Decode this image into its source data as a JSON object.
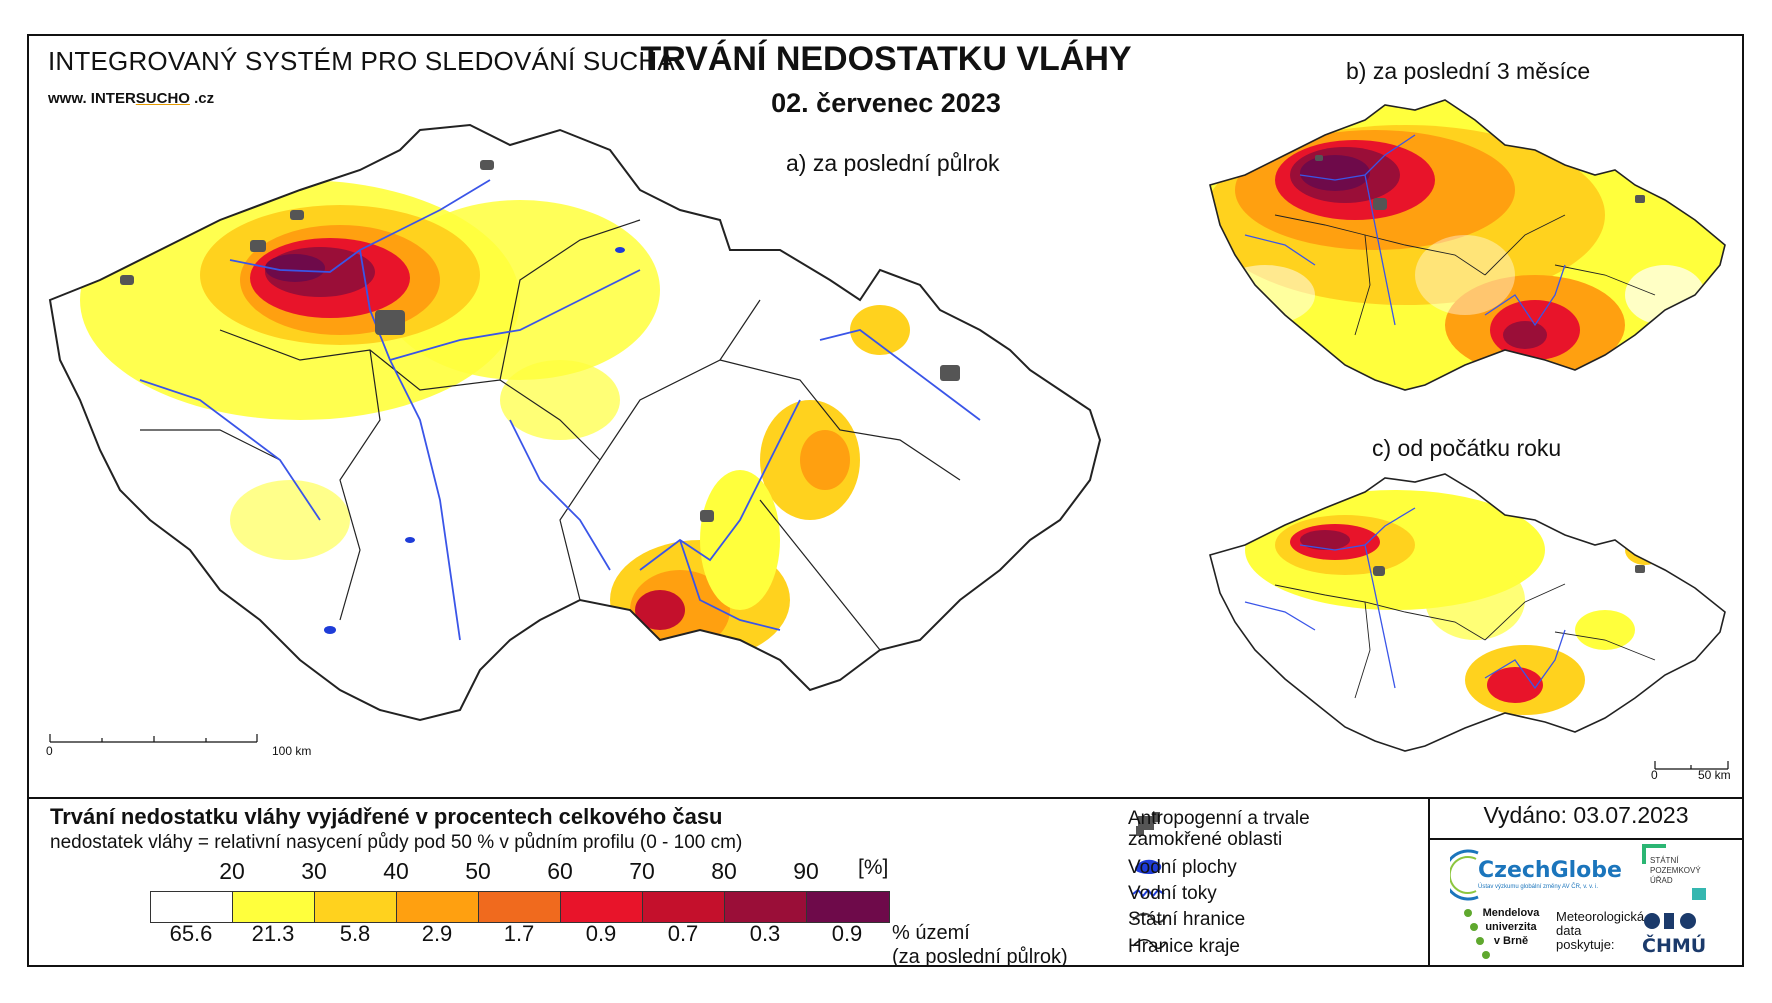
{
  "header": {
    "system": "INTEGROVANÝ SYSTÉM PRO SLEDOVÁNÍ SUCHA",
    "url_prefix": "www. INTER",
    "url_brand": "SUCHO",
    "url_suffix": " .cz",
    "title": "TRVÁNÍ NEDOSTATKU VLÁHY",
    "date": "02. červenec 2023"
  },
  "maps": {
    "a_label": "a) za poslední půlrok",
    "b_label": "b) za poslední 3 měsíce",
    "c_label": "c) od počátku roku",
    "scale_a": {
      "start": "0",
      "end": "100 km"
    },
    "scale_c": {
      "start": "0",
      "end": "50 km"
    }
  },
  "legend": {
    "title": "Trvání nedostatku vláhy vyjádřené v procentech celkového času",
    "subtitle": "nedostatek vláhy = relativní nasycení půdy pod 50 % v půdním profilu (0 - 100 cm)",
    "unit": "[%]",
    "thresholds": [
      "20",
      "30",
      "40",
      "50",
      "60",
      "70",
      "80",
      "90"
    ],
    "bins": [
      {
        "color": "#ffffff",
        "pct": "65.6"
      },
      {
        "color": "#ffff3c",
        "pct": "21.3"
      },
      {
        "color": "#ffd21e",
        "pct": "5.8"
      },
      {
        "color": "#ffa010",
        "pct": "2.9"
      },
      {
        "color": "#f06a1e",
        "pct": "1.7"
      },
      {
        "color": "#e8142a",
        "pct": "0.9"
      },
      {
        "color": "#c4102c",
        "pct": "0.7"
      },
      {
        "color": "#9a0e38",
        "pct": "0.3"
      },
      {
        "color": "#6e0a4a",
        "pct": "0.9"
      }
    ],
    "pct_label_1": "% území",
    "pct_label_2": "(za poslední půlrok)"
  },
  "symbols": {
    "anthropogenic_1": "Antropogenní a trvale",
    "anthropogenic_2": "zamokřené oblasti",
    "water_bodies": "Vodní plochy",
    "rivers": "Vodní toky",
    "state_border": "Státní hranice",
    "region_border": "Hranice kraje"
  },
  "issued": "Vydáno: 03.07.2023",
  "logos": {
    "czechglobe": "CzechGlobe",
    "czechglobe_sub": "Ústav výzkumu globální změny AV ČR, v. v. i.",
    "spu_1": "STÁTNÍ",
    "spu_2": "POZEMKOVÝ",
    "spu_3": "ÚŘAD",
    "mendel_1": "Mendelova",
    "mendel_2": "univerzita",
    "mendel_3": "v Brně",
    "meteo_1": "Meteorologická",
    "meteo_2": "data",
    "meteo_3": "poskytuje:",
    "chmu": "ČHMÚ"
  },
  "colors": {
    "river": "#3a55e8",
    "anthropogenic": "#555555",
    "border": "#222222"
  }
}
